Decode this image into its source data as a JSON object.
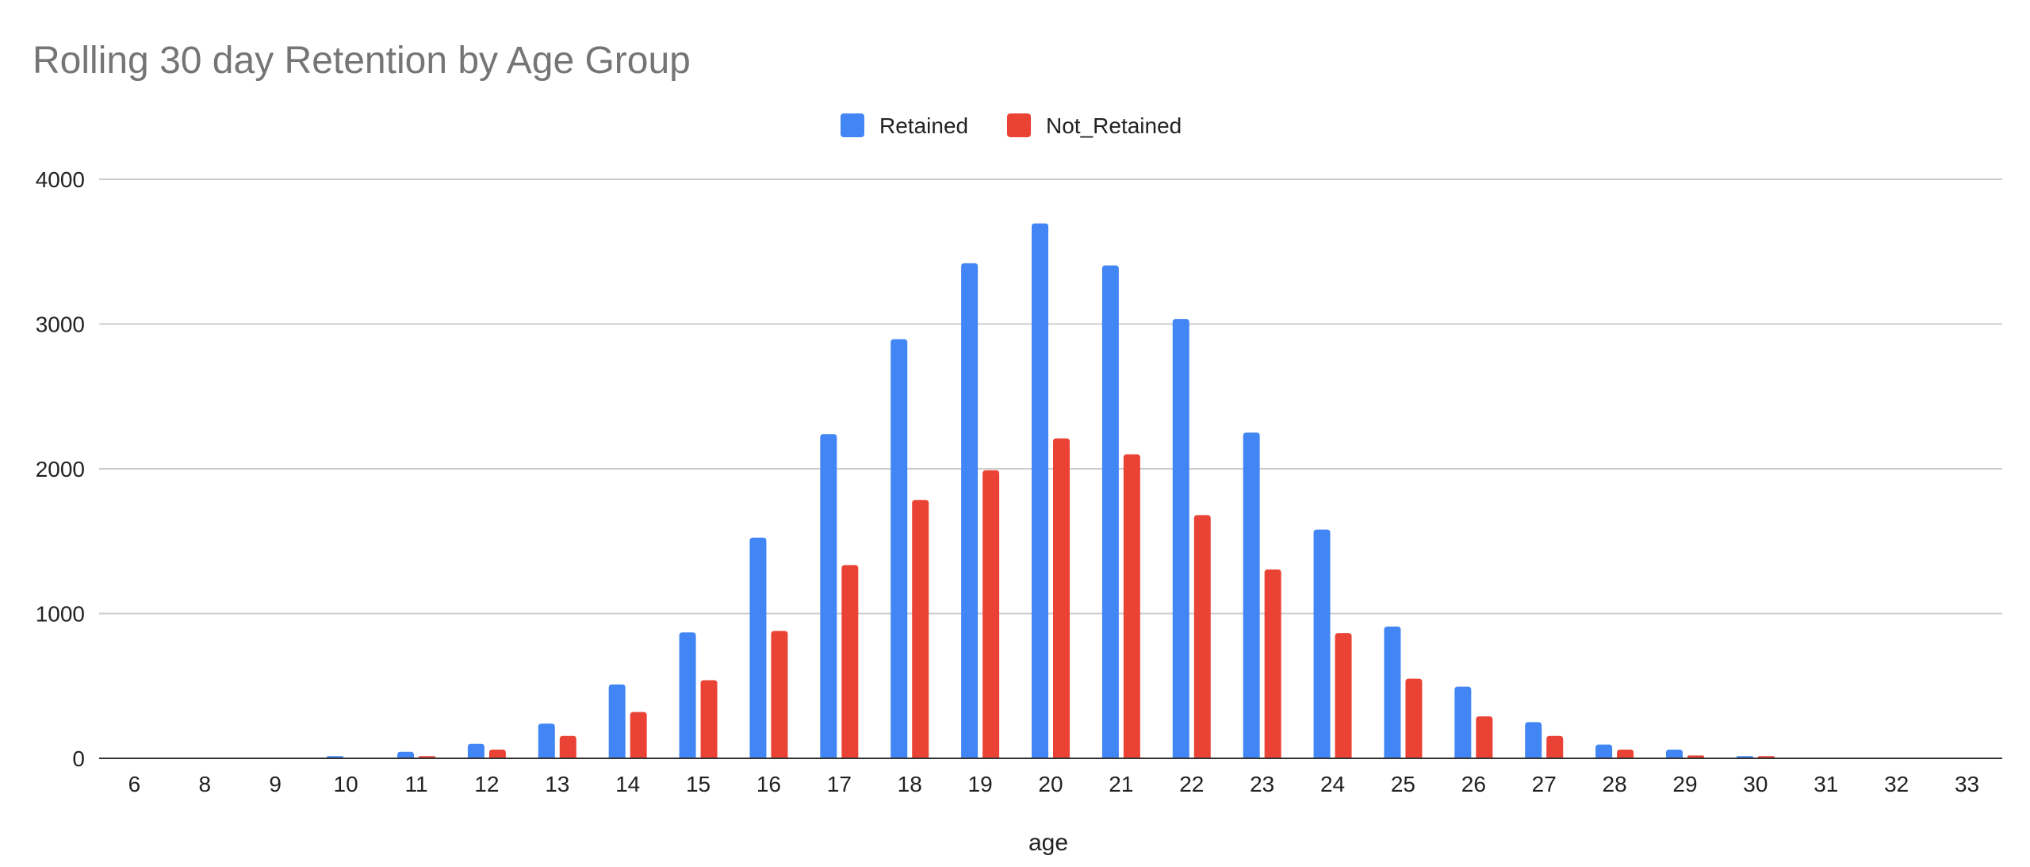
{
  "chart_data": {
    "type": "bar",
    "title": "Rolling 30 day Retention by Age Group",
    "xlabel": "age",
    "ylabel": "",
    "ylim": [
      0,
      4000
    ],
    "yticks": [
      0,
      1000,
      2000,
      3000,
      4000
    ],
    "grid": true,
    "legend_position": "top-center",
    "categories": [
      "6",
      "8",
      "9",
      "10",
      "11",
      "12",
      "13",
      "14",
      "15",
      "16",
      "17",
      "18",
      "19",
      "20",
      "21",
      "22",
      "23",
      "24",
      "25",
      "26",
      "27",
      "28",
      "29",
      "30",
      "31",
      "32",
      "33"
    ],
    "series": [
      {
        "name": "Retained",
        "color": "#4285f4",
        "values": [
          0,
          0,
          0,
          15,
          45,
          100,
          240,
          510,
          870,
          1525,
          2240,
          2895,
          3420,
          3695,
          3405,
          3035,
          2250,
          1580,
          910,
          495,
          250,
          95,
          60,
          15,
          0,
          0,
          0
        ]
      },
      {
        "name": "Not_Retained",
        "color": "#ea4335",
        "values": [
          0,
          0,
          0,
          5,
          15,
          60,
          155,
          320,
          540,
          880,
          1335,
          1785,
          1990,
          2210,
          2100,
          1680,
          1305,
          865,
          550,
          290,
          155,
          60,
          20,
          15,
          0,
          0,
          0
        ]
      }
    ]
  }
}
